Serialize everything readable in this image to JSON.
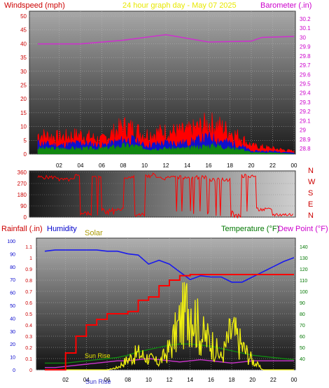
{
  "header": {
    "wind_title": "Windspeed (mph)",
    "date_title": "24 hour graph day - May 07 2025",
    "baro_title": "Barometer (.in)"
  },
  "bottom_header": {
    "rain_title": "Rainfall (.in)",
    "humidity_title": "Humidity",
    "solar_title": "Solar",
    "temp_title": "Temperature (°F)",
    "dew_title": "Dew Point (°F)"
  },
  "annotations": {
    "sunrise_label": "Sun Rise",
    "sunset_label": "Sun Rise"
  },
  "colors": {
    "wind": "#ff0000",
    "gust_avg": "#1010cc",
    "baro": "#cc33cc",
    "direction": "#ff0000",
    "rain": "#ff0000",
    "humidity": "#1a1aee",
    "solar": "#eeee10",
    "temperature": "#118811",
    "dew": "#cc33cc",
    "title_wind": "#cc0000",
    "title_date": "#e8e800",
    "title_baro": "#cc00cc",
    "title_rain": "#cc0000",
    "title_humidity": "#0000cc",
    "title_solar": "#aa9900",
    "title_temp": "#007700",
    "title_dew": "#cc00cc"
  },
  "chart_data": [
    {
      "type": "area",
      "name": "wind-baro",
      "x_ticks": [
        "02",
        "04",
        "06",
        "08",
        "10",
        "12",
        "14",
        "16",
        "18",
        "20",
        "22",
        "00"
      ],
      "left_axis": {
        "ticks": [
          "0",
          "5",
          "10",
          "15",
          "20",
          "25",
          "30",
          "35",
          "40",
          "45",
          "50"
        ],
        "ylim": [
          0,
          50
        ]
      },
      "right_axis": {
        "ticks": [
          "28.8",
          "28.9",
          "29",
          "29.1",
          "29.2",
          "29.3",
          "29.4",
          "29.5",
          "29.6",
          "29.7",
          "29.8",
          "29.9",
          "30",
          "30.1",
          "30.2"
        ],
        "ylim": [
          28.8,
          30.2
        ]
      },
      "hours": [
        0,
        2,
        4,
        6,
        8,
        9,
        10,
        12,
        14,
        16,
        17,
        18,
        19,
        20,
        22,
        24
      ],
      "gust": [
        7,
        6,
        7,
        5,
        10,
        9,
        7,
        8,
        8,
        11,
        10,
        8,
        6,
        3,
        2,
        1
      ],
      "avg_wind": [
        4,
        3,
        4,
        3,
        5,
        5,
        3,
        4,
        4,
        6,
        5,
        4,
        3,
        1,
        1,
        0.5
      ],
      "low_wind": [
        2,
        2,
        2,
        2,
        3,
        3,
        2,
        2,
        2,
        3,
        3,
        2,
        2,
        0.5,
        0.5,
        0
      ],
      "baro_hours": [
        0,
        1,
        4,
        8,
        12,
        16,
        20,
        21,
        24
      ],
      "barometer": [
        29.93,
        29.93,
        29.93,
        29.97,
        30.03,
        29.95,
        29.96,
        30.0,
        30.01
      ]
    },
    {
      "type": "line",
      "name": "wind-direction",
      "left_axis": {
        "ticks": [
          "0",
          "90",
          "180",
          "270",
          "360"
        ],
        "ylim": [
          0,
          360
        ]
      },
      "right_labels": [
        "N",
        "W",
        "S",
        "E",
        "N"
      ],
      "hours": [
        0,
        2,
        3.5,
        4,
        5,
        6,
        8,
        9,
        10,
        10.5,
        11,
        12,
        14,
        16,
        18,
        19,
        20,
        20.5,
        21,
        22,
        23,
        24
      ],
      "direction": [
        320,
        300,
        330,
        30,
        320,
        60,
        320,
        20,
        330,
        340,
        310,
        320,
        320,
        300,
        10,
        330,
        330,
        60,
        60,
        20,
        20,
        20
      ]
    },
    {
      "type": "line",
      "name": "rain-humidity-solar-temp",
      "left_axis": {
        "ticks": [
          "0",
          "0.1",
          "0.2",
          "0.3",
          "0.4",
          "0.5",
          "0.6",
          "0.7",
          "0.8",
          "0.9",
          "1",
          "1.1"
        ],
        "ylim": [
          0,
          1.15
        ]
      },
      "left_axis_2": {
        "ticks": [
          "0",
          "10",
          "20",
          "30",
          "40",
          "50",
          "60",
          "70",
          "80",
          "90",
          "100"
        ],
        "ylim": [
          0,
          100
        ]
      },
      "right_axis": {
        "ticks": [
          "40",
          "50",
          "60",
          "70",
          "80",
          "90",
          "100",
          "110",
          "120",
          "130",
          "140"
        ],
        "ylim": [
          30,
          145
        ]
      },
      "hours": [
        0,
        1,
        2,
        3,
        4,
        5,
        6,
        7,
        8,
        9,
        10,
        11,
        12,
        13,
        14,
        15,
        16,
        17,
        18,
        19,
        20,
        21,
        22,
        23,
        24
      ],
      "rainfall": [
        0,
        0,
        0.15,
        0.3,
        0.4,
        0.45,
        0.5,
        0.5,
        0.52,
        0.62,
        0.65,
        0.75,
        0.8,
        0.84,
        0.85,
        0.85,
        0.85,
        0.85,
        0.85,
        0.85,
        0.85,
        0.85,
        0.85,
        0.85,
        0.85
      ],
      "humidity": [
        92,
        93,
        93,
        93,
        93,
        93,
        92,
        92,
        90,
        89,
        82,
        85,
        82,
        76,
        70,
        73,
        72,
        72,
        68,
        68,
        72,
        76,
        80,
        84,
        87
      ],
      "temperature": [
        36,
        36,
        36,
        37,
        38,
        39,
        40,
        41,
        43,
        46,
        48,
        50,
        52,
        53,
        53,
        52,
        51,
        49,
        47,
        45,
        43,
        42,
        41,
        40,
        39
      ],
      "dew_point": [
        32,
        32,
        33,
        34,
        35,
        36,
        37,
        38,
        38,
        39,
        40,
        39,
        38,
        37,
        38,
        39,
        38,
        37,
        36,
        37,
        38,
        38,
        38,
        38,
        38
      ],
      "solar": [
        0,
        0,
        0,
        0,
        0,
        0,
        0,
        2,
        9,
        14,
        10,
        6,
        18,
        40,
        60,
        30,
        25,
        10,
        34,
        20,
        8,
        0,
        0,
        0,
        0
      ]
    }
  ],
  "x_ticks_bottom": [
    "02",
    "04",
    "06",
    "08",
    "10",
    "12",
    "14",
    "16",
    "18",
    "20",
    "22",
    "00"
  ]
}
